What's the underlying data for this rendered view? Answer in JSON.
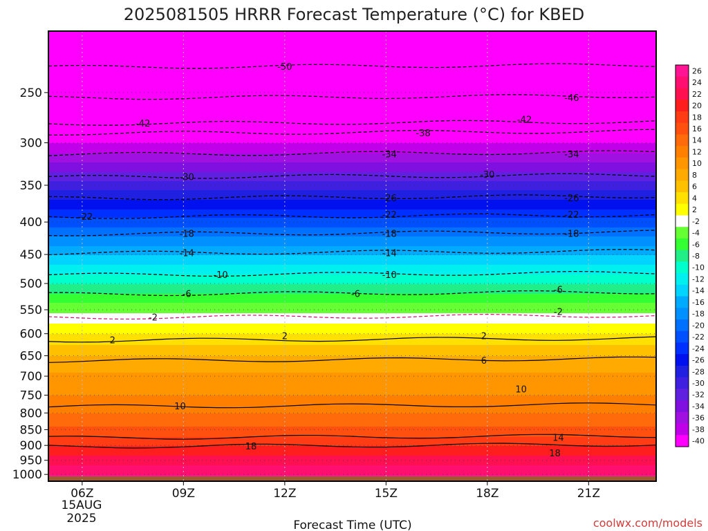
{
  "chart_data": {
    "type": "heatmap",
    "title": "2025081505 HRRR Forecast Temperature (°C) for KBED",
    "xlabel": "Forecast Time (UTC)",
    "x_ticks": [
      "06Z",
      "09Z",
      "12Z",
      "15Z",
      "18Z",
      "21Z"
    ],
    "x_date_line1": "15AUG",
    "x_date_line2": "2025",
    "x_hours": [
      6,
      9,
      12,
      15,
      18,
      21
    ],
    "xlim_hours": [
      5,
      23
    ],
    "y_ticks": [
      250,
      300,
      350,
      400,
      450,
      500,
      550,
      600,
      650,
      700,
      750,
      800,
      850,
      900,
      950,
      1000
    ],
    "ylim_hpa": [
      200,
      1025
    ],
    "y_scale": "log-pressure (reversed)",
    "colorbar_labels": [
      "26",
      "24",
      "22",
      "20",
      "18",
      "16",
      "14",
      "12",
      "10",
      "8",
      "6",
      "4",
      "2",
      "-2",
      "-4",
      "-6",
      "-8",
      "-10",
      "-12",
      "-14",
      "-16",
      "-18",
      "-20",
      "-22",
      "-24",
      "-26",
      "-28",
      "-30",
      "-32",
      "-34",
      "-36",
      "-38",
      "-40"
    ],
    "colorbar_colors": [
      "#ff1493",
      "#ff1070",
      "#ff1050",
      "#ff1e1e",
      "#ff3c14",
      "#ff5010",
      "#ff6a0a",
      "#ff8000",
      "#ff9600",
      "#ffaa00",
      "#ffc000",
      "#ffe000",
      "#ffff00",
      "#ffffff",
      "#66ff33",
      "#33ff33",
      "#22ee88",
      "#00ffcc",
      "#00f0f0",
      "#00d4ff",
      "#00aaff",
      "#0090ff",
      "#0070ff",
      "#0050ff",
      "#0030ff",
      "#0010ee",
      "#2020e0",
      "#4020e0",
      "#6020e0",
      "#8010e0",
      "#a010e0",
      "#c000e8",
      "#ff00ff"
    ],
    "grid": "dotted",
    "contour_labels": [
      {
        "v": "-50",
        "h": 12.0,
        "p": 228
      },
      {
        "v": "-46",
        "h": 20.5,
        "p": 255
      },
      {
        "v": "-42",
        "h": 7.8,
        "p": 280
      },
      {
        "v": "-42",
        "h": 19.1,
        "p": 276
      },
      {
        "v": "-38",
        "h": 16.1,
        "p": 290
      },
      {
        "v": "-34",
        "h": 15.1,
        "p": 313
      },
      {
        "v": "-34",
        "h": 20.5,
        "p": 313
      },
      {
        "v": "-30",
        "h": 9.1,
        "p": 340
      },
      {
        "v": "-30",
        "h": 18.0,
        "p": 337
      },
      {
        "v": "-26",
        "h": 15.1,
        "p": 367
      },
      {
        "v": "-26",
        "h": 20.5,
        "p": 367
      },
      {
        "v": "-22",
        "h": 6.1,
        "p": 393
      },
      {
        "v": "-22",
        "h": 15.1,
        "p": 390
      },
      {
        "v": "-22",
        "h": 20.5,
        "p": 390
      },
      {
        "v": "-18",
        "h": 9.1,
        "p": 418
      },
      {
        "v": "-18",
        "h": 15.1,
        "p": 418
      },
      {
        "v": "-18",
        "h": 20.5,
        "p": 418
      },
      {
        "v": "-14",
        "h": 9.1,
        "p": 448
      },
      {
        "v": "-14",
        "h": 15.1,
        "p": 448
      },
      {
        "v": "-10",
        "h": 10.1,
        "p": 485
      },
      {
        "v": "-10",
        "h": 15.1,
        "p": 485
      },
      {
        "v": "-6",
        "h": 9.1,
        "p": 520
      },
      {
        "v": "-6",
        "h": 14.1,
        "p": 520
      },
      {
        "v": "-6",
        "h": 20.1,
        "p": 512
      },
      {
        "v": "-2",
        "h": 8.1,
        "p": 566
      },
      {
        "v": "-2",
        "h": 20.1,
        "p": 555
      },
      {
        "v": "2",
        "h": 6.9,
        "p": 615
      },
      {
        "v": "2",
        "h": 12.0,
        "p": 606
      },
      {
        "v": "2",
        "h": 17.9,
        "p": 606
      },
      {
        "v": "6",
        "h": 17.9,
        "p": 662
      },
      {
        "v": "10",
        "h": 8.9,
        "p": 782
      },
      {
        "v": "10",
        "h": 19.0,
        "p": 735
      },
      {
        "v": "14",
        "h": 20.1,
        "p": 876
      },
      {
        "v": "18",
        "h": 11.0,
        "p": 904
      },
      {
        "v": "18",
        "h": 20.0,
        "p": 927
      }
    ]
  },
  "credit": "coolwx.com/models"
}
